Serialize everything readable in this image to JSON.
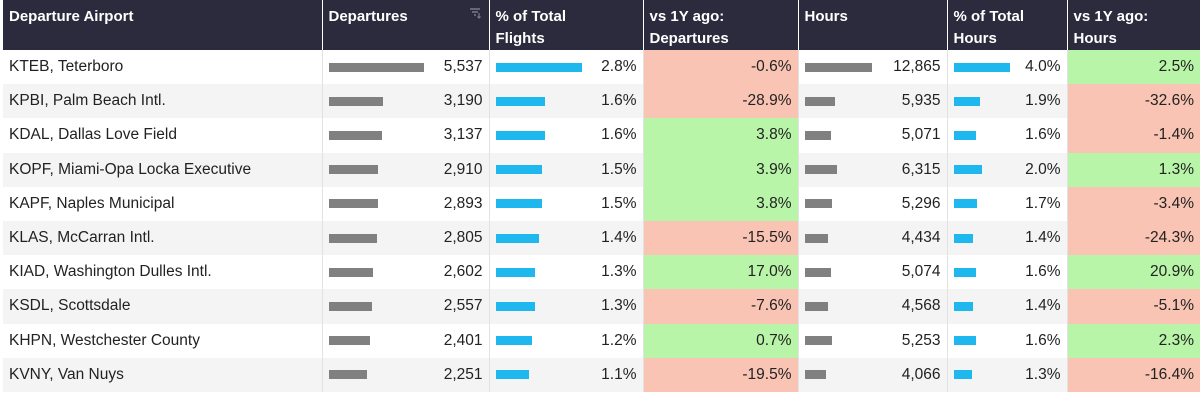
{
  "columns": [
    {
      "label_line1": "Departure Airport",
      "label_line2": ""
    },
    {
      "label_line1": "Departures",
      "label_line2": ""
    },
    {
      "label_line1": "% of Total",
      "label_line2": "Flights"
    },
    {
      "label_line1": "vs 1Y ago:",
      "label_line2": "Departures"
    },
    {
      "label_line1": "Hours",
      "label_line2": ""
    },
    {
      "label_line1": "% of Total",
      "label_line2": "Hours"
    },
    {
      "label_line1": "vs 1Y ago:",
      "label_line2": "Hours"
    }
  ],
  "icons": {
    "sort": "sort-icon"
  },
  "colors": {
    "header_bg": "#2b2b3d",
    "bar_gray": "#808080",
    "bar_blue": "#1fb8ee",
    "positive": "#b9f5a8",
    "negative": "#f9c4b4"
  },
  "rows": [
    {
      "airport": "KTEB, Teterboro",
      "departures": "5,537",
      "pct_flights": "2.8%",
      "vs_dep": "-0.6%",
      "hours": "12,865",
      "pct_hours": "4.0%",
      "vs_hours": "2.5%"
    },
    {
      "airport": "KPBI, Palm Beach Intl.",
      "departures": "3,190",
      "pct_flights": "1.6%",
      "vs_dep": "-28.9%",
      "hours": "5,935",
      "pct_hours": "1.9%",
      "vs_hours": "-32.6%"
    },
    {
      "airport": "KDAL, Dallas Love Field",
      "departures": "3,137",
      "pct_flights": "1.6%",
      "vs_dep": "3.8%",
      "hours": "5,071",
      "pct_hours": "1.6%",
      "vs_hours": "-1.4%"
    },
    {
      "airport": "KOPF, Miami-Opa Locka Executive",
      "departures": "2,910",
      "pct_flights": "1.5%",
      "vs_dep": "3.9%",
      "hours": "6,315",
      "pct_hours": "2.0%",
      "vs_hours": "1.3%"
    },
    {
      "airport": "KAPF, Naples Municipal",
      "departures": "2,893",
      "pct_flights": "1.5%",
      "vs_dep": "3.8%",
      "hours": "5,296",
      "pct_hours": "1.7%",
      "vs_hours": "-3.4%"
    },
    {
      "airport": "KLAS, McCarran Intl.",
      "departures": "2,805",
      "pct_flights": "1.4%",
      "vs_dep": "-15.5%",
      "hours": "4,434",
      "pct_hours": "1.4%",
      "vs_hours": "-24.3%"
    },
    {
      "airport": "KIAD, Washington Dulles Intl.",
      "departures": "2,602",
      "pct_flights": "1.3%",
      "vs_dep": "17.0%",
      "hours": "5,074",
      "pct_hours": "1.6%",
      "vs_hours": "20.9%"
    },
    {
      "airport": "KSDL, Scottsdale",
      "departures": "2,557",
      "pct_flights": "1.3%",
      "vs_dep": "-7.6%",
      "hours": "4,568",
      "pct_hours": "1.4%",
      "vs_hours": "-5.1%"
    },
    {
      "airport": "KHPN, Westchester County",
      "departures": "2,401",
      "pct_flights": "1.2%",
      "vs_dep": "0.7%",
      "hours": "5,253",
      "pct_hours": "1.6%",
      "vs_hours": "2.3%"
    },
    {
      "airport": "KVNY, Van Nuys",
      "departures": "2,251",
      "pct_flights": "1.1%",
      "vs_dep": "-19.5%",
      "hours": "4,066",
      "pct_hours": "1.3%",
      "vs_hours": "-16.4%"
    }
  ]
}
